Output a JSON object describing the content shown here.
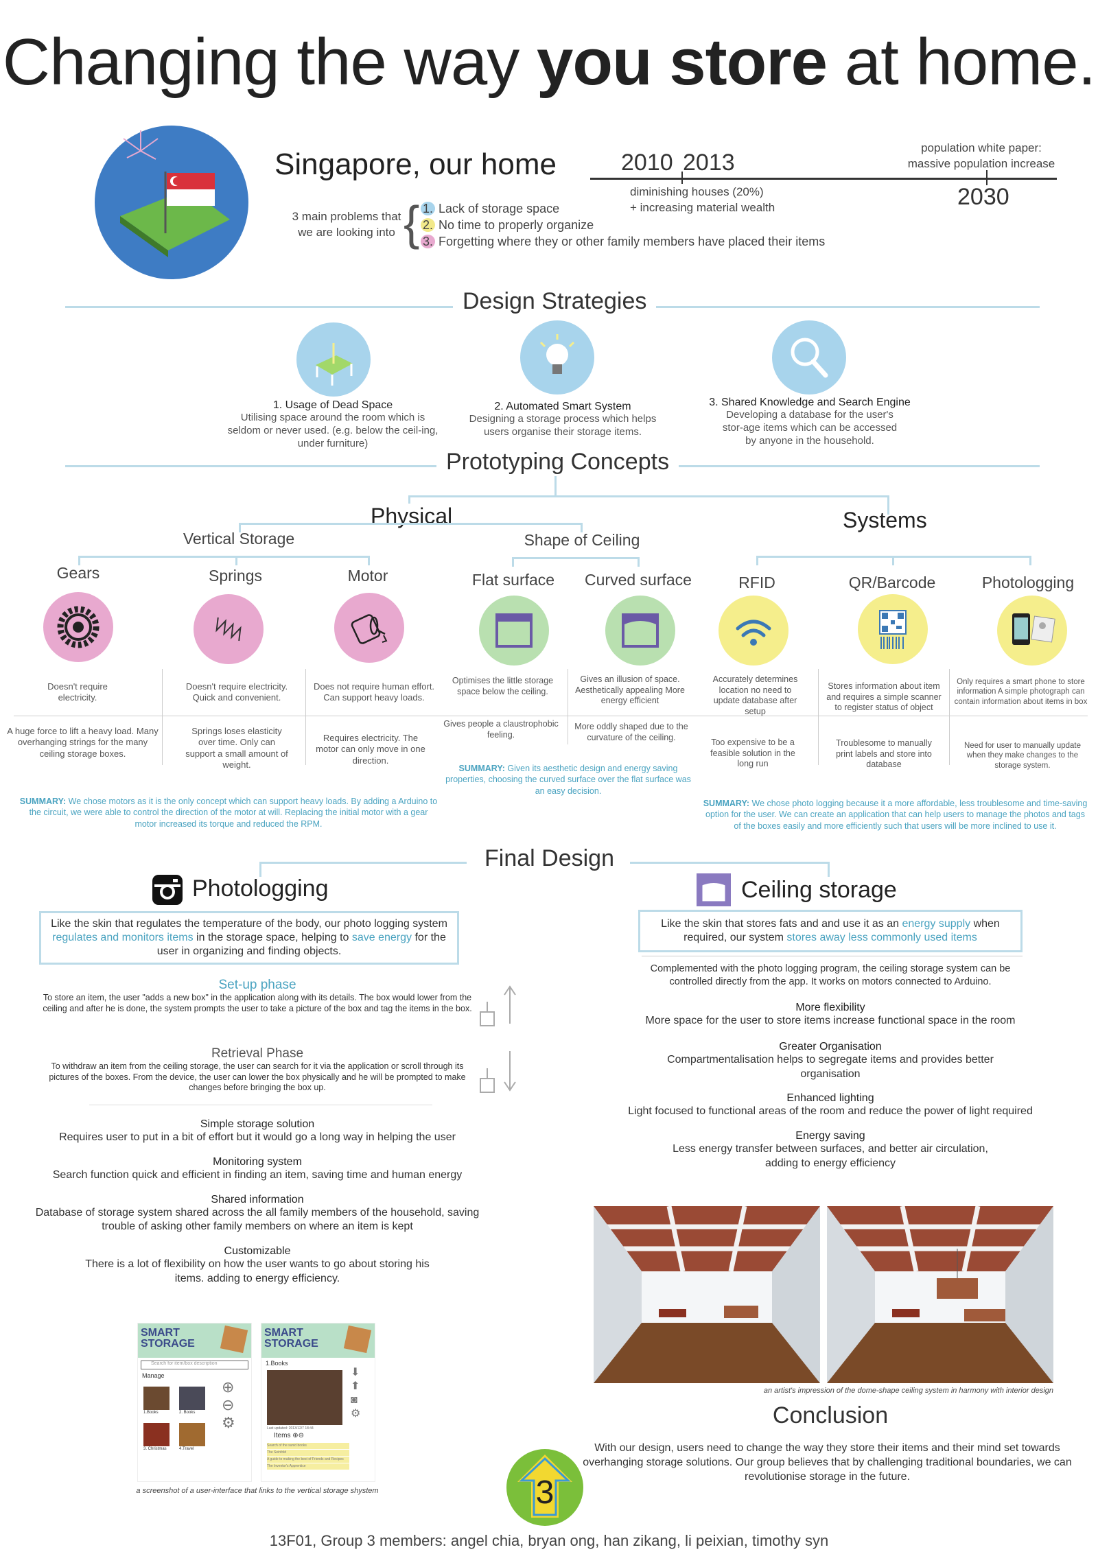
{
  "title": {
    "pre": "Changing the way ",
    "bold": "you store",
    "post": " at home."
  },
  "intro": {
    "heading_pre": "Singapore, ",
    "heading_post": "our home",
    "problems_label_1": "3 main problems that",
    "problems_label_2": "we are looking into",
    "problems": [
      {
        "num": "1.",
        "text": "Lack of storage space",
        "color": "#a8d4ec"
      },
      {
        "num": "2.",
        "text": "No time to properly organize",
        "color": "#f2e98a"
      },
      {
        "num": "3.",
        "text": "Forgetting where they or other family members have placed their items",
        "color": "#e8a9cf"
      }
    ],
    "timeline": {
      "y2010": "2010",
      "y2013": "2013",
      "y2030": "2030",
      "note1": "diminishing houses (20%)",
      "note2": "+ increasing material wealth",
      "note3": "population white paper:",
      "note4": "massive population increase"
    }
  },
  "strategies": {
    "heading": "Design Strategies",
    "items": [
      {
        "title": "1. Usage of Dead Space",
        "desc": "Utilising space around the room which is seldom or never used. (e.g. below the ceil-ing, under furniture)"
      },
      {
        "title": "2. Automated Smart System",
        "desc": "Designing a storage process which helps users organise their storage items."
      },
      {
        "title": "3. Shared Knowledge and Search Engine",
        "desc": "Developing a database for the user's stor-age items which can be accessed by anyone in the household."
      }
    ]
  },
  "prototyping": {
    "heading": "Prototyping Concepts",
    "physical": "Physical",
    "systems": "Systems",
    "vertical": "Vertical Storage",
    "ceiling": "Shape of Ceiling",
    "concepts": [
      {
        "name": "Gears",
        "pro": "Doesn't require electricity.",
        "con": "A huge force to lift a heavy load. Many overhanging strings for the many ceiling storage boxes."
      },
      {
        "name": "Springs",
        "pro": "Doesn't require electricity. Quick and convenient.",
        "con": "Springs loses elasticity over time. Only can support a small amount of weight."
      },
      {
        "name": "Motor",
        "pro": "Does not require human effort. Can support heavy loads.",
        "con": "Requires electricity. The motor can only move in one direction."
      },
      {
        "name": "Flat surface",
        "pro": "Optimises the little storage space below the ceiling.",
        "con": "Gives people a claustrophobic feeling."
      },
      {
        "name": "Curved surface",
        "pro": "Gives an illusion of space. Aesthetically appealing More energy efficient",
        "con": "More oddly shaped due to the curvature of the ceiling."
      },
      {
        "name": "RFID",
        "pro": "Accurately determines location no need to update database after setup",
        "con": "Too expensive to be a feasible solution in the long run"
      },
      {
        "name": "QR/Barcode",
        "pro": "Stores information about item and requires a simple scanner to register status of object",
        "con": "Troublesome to manually print labels and store into database"
      },
      {
        "name": "Photologging",
        "pro": "Only requires a smart phone to store information A simple photograph can contain information about items in box",
        "con": "Need for user to manually update when they make changes to the storage system."
      }
    ],
    "summary_label": "SUMMARY:",
    "summary_vertical": " We chose motors as it is the only concept which can support heavy loads. By adding a Arduino to the circuit, we were able to control the direction of the motor at will. Replacing the initial motor with a gear motor increased its torque and reduced the RPM.",
    "summary_ceiling": " Given its aesthetic design and energy saving properties, choosing the curved surface over the flat surface was an easy decision.",
    "summary_systems": " We chose photo logging because it a more affordable, less troublesome and time-saving option for the user. We can create an application that can help users to manage the photos and tags of the boxes easily and more efficiently such that users will be more inclined to use it."
  },
  "final": {
    "heading": "Final Design",
    "photolog": {
      "title": "Photologging",
      "box_a": "Like the skin that regulates the temperature of the body, our photo logging system ",
      "box_b": "regulates and monitors items",
      "box_c": " in the storage space, helping to ",
      "box_d": "save energy",
      "box_e": " for the user in organizing and finding objects.",
      "setup_title": "Set-up phase",
      "setup_text": "To store an item, the user \"adds a new box\" in the application along with its details. The box would lower from the ceiling and after he is done, the system prompts the user to take a picture of the box and tag the items in the box.",
      "retrieval_title": "Retrieval Phase",
      "retrieval_text": "To withdraw an item from the ceiling storage, the user can search for it via the application or scroll through its pictures of the boxes. From the device, the user can lower the box physically and he will be prompted to make changes before bringing the box up.",
      "features": [
        {
          "title": "Simple storage solution",
          "text": "Requires user to put in a bit of effort but it would go a long way in helping the user"
        },
        {
          "title": "Monitoring system",
          "text": "Search function quick and efficient in finding an item, saving time and human energy"
        },
        {
          "title": "Shared information",
          "text": "Database of storage system shared across the all family members of the household, saving trouble of asking other family members on where an item is kept"
        },
        {
          "title": "Customizable",
          "text": "There is a lot of flexibility on how the user wants to go about storing his items. adding to energy efficiency."
        }
      ],
      "app": {
        "logo1": "SMART",
        "logo2": "STORAGE",
        "search_placeholder": "Search for item/box description",
        "manage": "Manage",
        "boxes": [
          "1.Books",
          "2. Books",
          "3. Christmas",
          "4.Travel"
        ],
        "books": "1.Books",
        "updated": "Last updated: 2013/12/7 18:44",
        "items": "Items",
        "list": [
          "Search of the sunid books",
          "The Seinfold",
          "A guide to making the best of Friends and Recipes",
          "The Inventor's Apprentice"
        ]
      },
      "caption": "a screenshot of a user-interface that links to the vertical storage shystem"
    },
    "ceiling": {
      "title": "Ceiling storage",
      "box_a": "Like the skin that stores fats and and use it as an ",
      "box_b": "energy supply",
      "box_c": " when required, our system ",
      "box_d": "stores away less commonly used items",
      "intro": "Complemented with the photo logging program, the ceiling storage system can be controlled directly from the app. It works on motors connected to Arduino.",
      "features": [
        {
          "title": "More flexibility",
          "text": "More space for the user to store items increase functional space in the room"
        },
        {
          "title": "Greater Organisation",
          "text": "Compartmentalisation helps to segregate items and provides better organisation"
        },
        {
          "title": "Enhanced lighting",
          "text": "Light focused to functional areas of the room and reduce the power of light required"
        },
        {
          "title": "Energy saving",
          "text": "Less energy transfer between surfaces, and better air circulation, adding to energy efficiency"
        }
      ],
      "caption": "an artist's impression of the dome-shape ceiling system in harmony with interior design"
    }
  },
  "conclusion": {
    "heading": "Conclusion",
    "text": "With our design, users need to change the way they store their items and their mind set towards overhanging storage solutions. Our group believes that by challenging traditional boundaries, we can revolutionise storage in the future."
  },
  "logo_number": "3",
  "footer": "13F01, Group 3 members: angel chia, bryan ong, han zikang, li peixian, timothy syn",
  "colors": {
    "accent": "#4aa3c0",
    "line": "#bcdbe8",
    "pink": "#e8a9cf",
    "green": "#b9e0b0",
    "yellow": "#f5ee8c",
    "blue": "#a8d4ec"
  }
}
